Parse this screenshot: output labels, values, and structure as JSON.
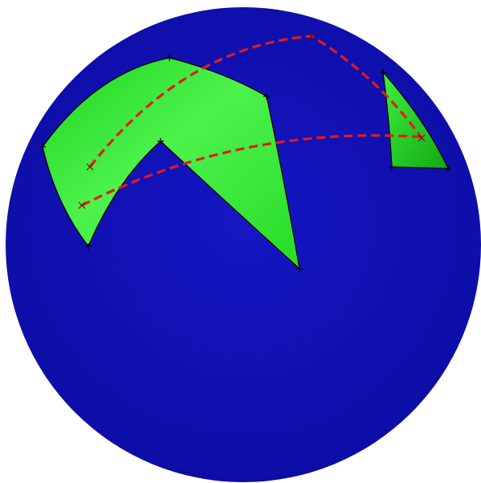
{
  "colors": {
    "background": "#ffffff",
    "sphere": "#1212b8",
    "sphere_dark": "#0a0a96",
    "region_fill": "#2fe82f",
    "region_light": "#5cf55c",
    "region_dark": "#17b317",
    "edge": "#000000",
    "path": "#e21b1b"
  },
  "scene": {
    "sphere_label": "",
    "regions": [
      {
        "name": "region-large",
        "kind": "spherical-polygon",
        "vertices": 6
      },
      {
        "name": "region-small",
        "kind": "spherical-triangle",
        "vertices": 3
      }
    ],
    "paths": [
      {
        "name": "path-upper",
        "style": "dashed"
      },
      {
        "name": "path-lower",
        "style": "dashed"
      }
    ]
  }
}
